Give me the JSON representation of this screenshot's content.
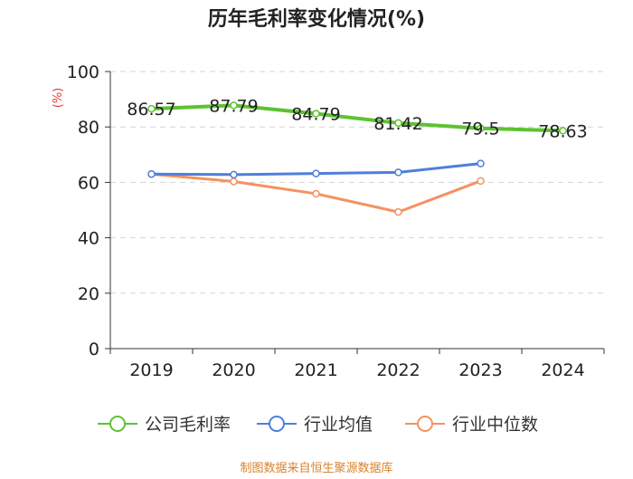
{
  "chart_data": {
    "type": "line",
    "title": "历年毛利率变化情况(%)",
    "ylabel": "(%)",
    "xlabel": "",
    "categories": [
      "2019",
      "2020",
      "2021",
      "2022",
      "2023",
      "2024"
    ],
    "ylim": [
      0,
      100
    ],
    "yticks": [
      0,
      20,
      40,
      60,
      80,
      100
    ],
    "grid": true,
    "legend_position": "bottom",
    "series": [
      {
        "name": "公司毛利率",
        "color": "#5ec232",
        "values": [
          86.57,
          87.79,
          84.79,
          81.42,
          79.5,
          78.63
        ],
        "labels": [
          "86.57",
          "87.79",
          "84.79",
          "81.42",
          "79.5",
          "78.63"
        ]
      },
      {
        "name": "行业均值",
        "color": "#4f7fdc",
        "values": [
          63.0,
          62.8,
          63.2,
          63.6,
          66.8,
          null
        ]
      },
      {
        "name": "行业中位数",
        "color": "#f49262",
        "values": [
          63.0,
          60.3,
          55.9,
          49.3,
          60.5,
          null
        ]
      }
    ],
    "source": "制图数据来自恒生聚源数据库"
  }
}
